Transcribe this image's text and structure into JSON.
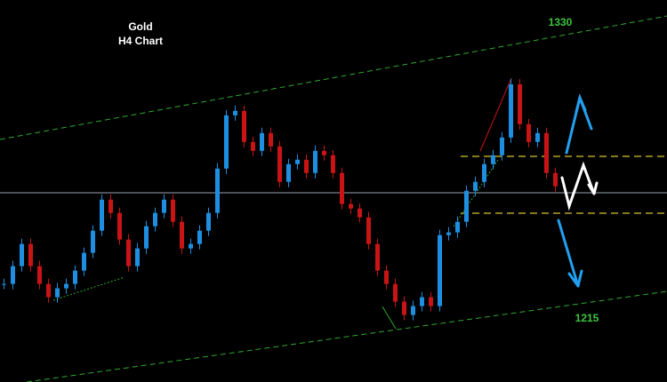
{
  "chart_data": {
    "type": "candlestick",
    "title": "Gold",
    "subtitle": "H4 Chart",
    "annotations": [
      {
        "text": "1330",
        "color": "#3ec43e"
      },
      {
        "text": "1215",
        "color": "#3ec43e"
      }
    ],
    "ylim": [
      1184,
      1339
    ],
    "up_color": "#1e8fe0",
    "down_color": "#c81414",
    "values": [
      1223.8,
      1231,
      1240,
      1231,
      1223.8,
      1218.4,
      1222,
      1223.8,
      1229.2,
      1236.4,
      1245.4,
      1258,
      1252.6,
      1241.8,
      1231,
      1238.2,
      1247.2,
      1252.6,
      1258,
      1249,
      1238.2,
      1240,
      1245.4,
      1252.6,
      1270.6,
      1292.2,
      1294,
      1281.4,
      1277.8,
      1285,
      1279.6,
      1265.2,
      1272.4,
      1274.2,
      1268.8,
      1277.8,
      1276,
      1268.8,
      1256.2,
      1254.4,
      1250.8,
      1240,
      1229.2,
      1223.8,
      1216.6,
      1211.2,
      1214.8,
      1218.4,
      1214.8,
      1243.6,
      1244.7,
      1249,
      1261.6,
      1265.2,
      1272.4,
      1276,
      1283.2,
      1304.8,
      1288.6,
      1281.4,
      1285,
      1268.8,
      1263.4
    ]
  }
}
